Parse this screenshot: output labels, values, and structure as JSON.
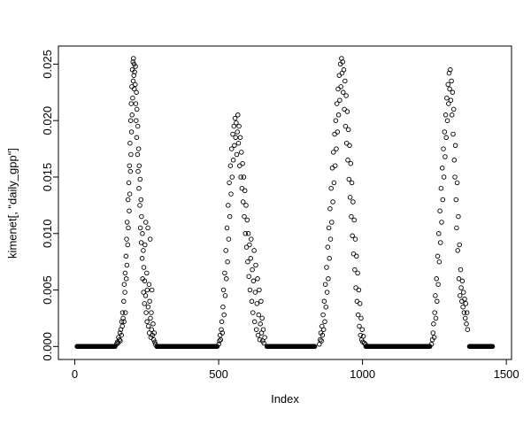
{
  "chart_data": {
    "type": "scatter",
    "title": "",
    "xlabel": "Index",
    "ylabel": "kimenet[, \"daily_gpp\"]",
    "xlim": [
      -57,
      1518
    ],
    "ylim": [
      -0.00115,
      0.0266
    ],
    "x_ticks": [
      0,
      500,
      1000,
      1500
    ],
    "y_ticks": [
      0.0,
      0.005,
      0.01,
      0.015,
      0.02,
      0.025
    ],
    "y_tick_labels": [
      "0.000",
      "0.005",
      "0.010",
      "0.015",
      "0.020",
      "0.025"
    ],
    "grid": false,
    "legend": "none",
    "marker": {
      "shape": "circle-open",
      "radius": 2.3,
      "color": "#000000"
    },
    "baseline_y": 0,
    "baseline_segments": [
      [
        8,
        140
      ],
      [
        285,
        495
      ],
      [
        668,
        835
      ],
      [
        1012,
        1235
      ],
      [
        1372,
        1452
      ]
    ],
    "points": [
      [
        145,
        0.0002
      ],
      [
        148,
        0.0004
      ],
      [
        150,
        0.0003
      ],
      [
        152,
        0.0008
      ],
      [
        155,
        0.0006
      ],
      [
        157,
        0.0012
      ],
      [
        158,
        0.0005
      ],
      [
        160,
        0.0015
      ],
      [
        162,
        0.001
      ],
      [
        163,
        0.0022
      ],
      [
        165,
        0.0018
      ],
      [
        166,
        0.003
      ],
      [
        168,
        0.0025
      ],
      [
        170,
        0.004
      ],
      [
        171,
        0.0022
      ],
      [
        172,
        0.0055
      ],
      [
        174,
        0.0048
      ],
      [
        175,
        0.0065
      ],
      [
        176,
        0.003
      ],
      [
        178,
        0.008
      ],
      [
        179,
        0.006
      ],
      [
        180,
        0.0095
      ],
      [
        181,
        0.0072
      ],
      [
        182,
        0.011
      ],
      [
        184,
        0.009
      ],
      [
        185,
        0.013
      ],
      [
        186,
        0.0105
      ],
      [
        188,
        0.0145
      ],
      [
        189,
        0.012
      ],
      [
        190,
        0.016
      ],
      [
        191,
        0.0135
      ],
      [
        192,
        0.018
      ],
      [
        193,
        0.0155
      ],
      [
        194,
        0.02
      ],
      [
        195,
        0.017
      ],
      [
        196,
        0.0215
      ],
      [
        197,
        0.019
      ],
      [
        198,
        0.023
      ],
      [
        199,
        0.0205
      ],
      [
        200,
        0.0245
      ],
      [
        201,
        0.022
      ],
      [
        202,
        0.0252
      ],
      [
        203,
        0.0235
      ],
      [
        204,
        0.0255
      ],
      [
        205,
        0.024
      ],
      [
        206,
        0.025
      ],
      [
        207,
        0.0228
      ],
      [
        208,
        0.0243
      ],
      [
        210,
        0.0232
      ],
      [
        211,
        0.0248
      ],
      [
        212,
        0.0215
      ],
      [
        213,
        0.02
      ],
      [
        214,
        0.0225
      ],
      [
        215,
        0.0185
      ],
      [
        216,
        0.021
      ],
      [
        218,
        0.017
      ],
      [
        219,
        0.0195
      ],
      [
        220,
        0.0155
      ],
      [
        222,
        0.0175
      ],
      [
        223,
        0.014
      ],
      [
        224,
        0.016
      ],
      [
        226,
        0.0125
      ],
      [
        227,
        0.0148
      ],
      [
        228,
        0.0105
      ],
      [
        230,
        0.013
      ],
      [
        231,
        0.0092
      ],
      [
        232,
        0.0115
      ],
      [
        234,
        0.0078
      ],
      [
        235,
        0.01
      ],
      [
        236,
        0.006
      ],
      [
        238,
        0.0085
      ],
      [
        239,
        0.0048
      ],
      [
        240,
        0.007
      ],
      [
        242,
        0.0038
      ],
      [
        243,
        0.0058
      ],
      [
        244,
        0.009
      ],
      [
        246,
        0.0045
      ],
      [
        247,
        0.011
      ],
      [
        248,
        0.003
      ],
      [
        250,
        0.0065
      ],
      [
        251,
        0.0022
      ],
      [
        252,
        0.005
      ],
      [
        254,
        0.0105
      ],
      [
        255,
        0.0035
      ],
      [
        256,
        0.0018
      ],
      [
        258,
        0.0055
      ],
      [
        259,
        0.0012
      ],
      [
        260,
        0.004
      ],
      [
        262,
        0.0095
      ],
      [
        263,
        0.0025
      ],
      [
        264,
        0.0008
      ],
      [
        266,
        0.003
      ],
      [
        267,
        0.0015
      ],
      [
        268,
        0.005
      ],
      [
        270,
        0.001
      ],
      [
        272,
        0.002
      ],
      [
        274,
        0.0006
      ],
      [
        276,
        0.0012
      ],
      [
        278,
        0.0004
      ],
      [
        280,
        0.0002
      ],
      [
        500,
        0.0002
      ],
      [
        503,
        0.0005
      ],
      [
        505,
        0.001
      ],
      [
        507,
        0.0006
      ],
      [
        509,
        0.0015
      ],
      [
        511,
        0.0022
      ],
      [
        513,
        0.0012
      ],
      [
        515,
        0.0035
      ],
      [
        517,
        0.005
      ],
      [
        519,
        0.0028
      ],
      [
        521,
        0.0065
      ],
      [
        523,
        0.0045
      ],
      [
        525,
        0.0085
      ],
      [
        527,
        0.006
      ],
      [
        529,
        0.0105
      ],
      [
        531,
        0.0075
      ],
      [
        533,
        0.0125
      ],
      [
        535,
        0.0095
      ],
      [
        537,
        0.0145
      ],
      [
        539,
        0.0115
      ],
      [
        541,
        0.016
      ],
      [
        543,
        0.0135
      ],
      [
        545,
        0.0175
      ],
      [
        547,
        0.015
      ],
      [
        549,
        0.0188
      ],
      [
        551,
        0.0165
      ],
      [
        553,
        0.0195
      ],
      [
        555,
        0.0178
      ],
      [
        557,
        0.0202
      ],
      [
        559,
        0.0185
      ],
      [
        561,
        0.0198
      ],
      [
        563,
        0.017
      ],
      [
        565,
        0.019
      ],
      [
        567,
        0.0205
      ],
      [
        569,
        0.018
      ],
      [
        571,
        0.0195
      ],
      [
        573,
        0.016
      ],
      [
        575,
        0.0185
      ],
      [
        577,
        0.015
      ],
      [
        579,
        0.0172
      ],
      [
        581,
        0.014
      ],
      [
        583,
        0.0162
      ],
      [
        585,
        0.0128
      ],
      [
        587,
        0.015
      ],
      [
        589,
        0.0115
      ],
      [
        591,
        0.0138
      ],
      [
        593,
        0.01
      ],
      [
        595,
        0.0125
      ],
      [
        597,
        0.0088
      ],
      [
        599,
        0.0112
      ],
      [
        601,
        0.0075
      ],
      [
        603,
        0.01
      ],
      [
        605,
        0.0062
      ],
      [
        607,
        0.009
      ],
      [
        609,
        0.005
      ],
      [
        611,
        0.0078
      ],
      [
        613,
        0.0095
      ],
      [
        615,
        0.004
      ],
      [
        617,
        0.0068
      ],
      [
        619,
        0.003
      ],
      [
        621,
        0.0058
      ],
      [
        623,
        0.0085
      ],
      [
        625,
        0.0022
      ],
      [
        627,
        0.0048
      ],
      [
        629,
        0.0072
      ],
      [
        631,
        0.0015
      ],
      [
        633,
        0.0038
      ],
      [
        635,
        0.006
      ],
      [
        637,
        0.001
      ],
      [
        639,
        0.0028
      ],
      [
        641,
        0.005
      ],
      [
        643,
        0.0006
      ],
      [
        645,
        0.002
      ],
      [
        647,
        0.004
      ],
      [
        649,
        0.0012
      ],
      [
        651,
        0.0025
      ],
      [
        653,
        0.0005
      ],
      [
        655,
        0.0015
      ],
      [
        657,
        0.0003
      ],
      [
        660,
        0.0008
      ],
      [
        850,
        0.0002
      ],
      [
        853,
        0.0006
      ],
      [
        855,
        0.0012
      ],
      [
        857,
        0.0005
      ],
      [
        859,
        0.0018
      ],
      [
        861,
        0.001
      ],
      [
        863,
        0.0028
      ],
      [
        865,
        0.0015
      ],
      [
        867,
        0.004
      ],
      [
        869,
        0.0022
      ],
      [
        871,
        0.0055
      ],
      [
        873,
        0.0035
      ],
      [
        875,
        0.007
      ],
      [
        877,
        0.0048
      ],
      [
        879,
        0.0088
      ],
      [
        881,
        0.006
      ],
      [
        883,
        0.0105
      ],
      [
        885,
        0.0078
      ],
      [
        887,
        0.0122
      ],
      [
        889,
        0.0095
      ],
      [
        891,
        0.014
      ],
      [
        893,
        0.011
      ],
      [
        895,
        0.0158
      ],
      [
        897,
        0.0128
      ],
      [
        899,
        0.0172
      ],
      [
        901,
        0.0145
      ],
      [
        903,
        0.0188
      ],
      [
        905,
        0.016
      ],
      [
        907,
        0.02
      ],
      [
        909,
        0.0175
      ],
      [
        911,
        0.0215
      ],
      [
        913,
        0.019
      ],
      [
        915,
        0.0228
      ],
      [
        917,
        0.0205
      ],
      [
        919,
        0.024
      ],
      [
        921,
        0.0218
      ],
      [
        923,
        0.025
      ],
      [
        925,
        0.023
      ],
      [
        927,
        0.0255
      ],
      [
        929,
        0.0242
      ],
      [
        931,
        0.0252
      ],
      [
        933,
        0.0225
      ],
      [
        935,
        0.0245
      ],
      [
        937,
        0.021
      ],
      [
        939,
        0.0235
      ],
      [
        941,
        0.0195
      ],
      [
        943,
        0.0222
      ],
      [
        945,
        0.018
      ],
      [
        947,
        0.0208
      ],
      [
        949,
        0.0165
      ],
      [
        951,
        0.0192
      ],
      [
        953,
        0.0148
      ],
      [
        955,
        0.0178
      ],
      [
        957,
        0.0132
      ],
      [
        959,
        0.0162
      ],
      [
        961,
        0.0115
      ],
      [
        963,
        0.0145
      ],
      [
        965,
        0.0098
      ],
      [
        967,
        0.0128
      ],
      [
        969,
        0.0082
      ],
      [
        971,
        0.0112
      ],
      [
        973,
        0.0068
      ],
      [
        975,
        0.0095
      ],
      [
        977,
        0.0052
      ],
      [
        979,
        0.008
      ],
      [
        981,
        0.004
      ],
      [
        983,
        0.0065
      ],
      [
        985,
        0.0028
      ],
      [
        987,
        0.005
      ],
      [
        989,
        0.0018
      ],
      [
        991,
        0.0038
      ],
      [
        993,
        0.001
      ],
      [
        995,
        0.0025
      ],
      [
        997,
        0.0006
      ],
      [
        999,
        0.0015
      ],
      [
        1001,
        0.0004
      ],
      [
        1003,
        0.0009
      ],
      [
        1006,
        0.0003
      ],
      [
        1010,
        0.0002
      ],
      [
        1240,
        0.0002
      ],
      [
        1243,
        0.0006
      ],
      [
        1245,
        0.0012
      ],
      [
        1247,
        0.002
      ],
      [
        1249,
        0.0008
      ],
      [
        1251,
        0.003
      ],
      [
        1253,
        0.0045
      ],
      [
        1255,
        0.0025
      ],
      [
        1257,
        0.006
      ],
      [
        1259,
        0.004
      ],
      [
        1261,
        0.008
      ],
      [
        1263,
        0.0055
      ],
      [
        1265,
        0.01
      ],
      [
        1267,
        0.0075
      ],
      [
        1269,
        0.012
      ],
      [
        1271,
        0.0092
      ],
      [
        1273,
        0.014
      ],
      [
        1275,
        0.011
      ],
      [
        1277,
        0.0158
      ],
      [
        1279,
        0.013
      ],
      [
        1281,
        0.0175
      ],
      [
        1283,
        0.015
      ],
      [
        1285,
        0.019
      ],
      [
        1287,
        0.0168
      ],
      [
        1289,
        0.0205
      ],
      [
        1291,
        0.0185
      ],
      [
        1293,
        0.022
      ],
      [
        1295,
        0.02
      ],
      [
        1297,
        0.0232
      ],
      [
        1299,
        0.0215
      ],
      [
        1301,
        0.0242
      ],
      [
        1303,
        0.0228
      ],
      [
        1305,
        0.0245
      ],
      [
        1307,
        0.0218
      ],
      [
        1309,
        0.0235
      ],
      [
        1311,
        0.0205
      ],
      [
        1313,
        0.0225
      ],
      [
        1315,
        0.0188
      ],
      [
        1317,
        0.021
      ],
      [
        1319,
        0.0165
      ],
      [
        1321,
        0.015
      ],
      [
        1323,
        0.0178
      ],
      [
        1325,
        0.013
      ],
      [
        1327,
        0.0105
      ],
      [
        1329,
        0.0145
      ],
      [
        1331,
        0.0085
      ],
      [
        1333,
        0.0115
      ],
      [
        1335,
        0.006
      ],
      [
        1337,
        0.009
      ],
      [
        1339,
        0.0045
      ],
      [
        1341,
        0.0068
      ],
      [
        1343,
        0.0052
      ],
      [
        1345,
        0.004
      ],
      [
        1347,
        0.0058
      ],
      [
        1349,
        0.0035
      ],
      [
        1351,
        0.0048
      ],
      [
        1353,
        0.003
      ],
      [
        1355,
        0.0042
      ],
      [
        1357,
        0.0025
      ],
      [
        1359,
        0.0038
      ],
      [
        1361,
        0.002
      ],
      [
        1363,
        0.003
      ],
      [
        1365,
        0.0015
      ]
    ]
  }
}
